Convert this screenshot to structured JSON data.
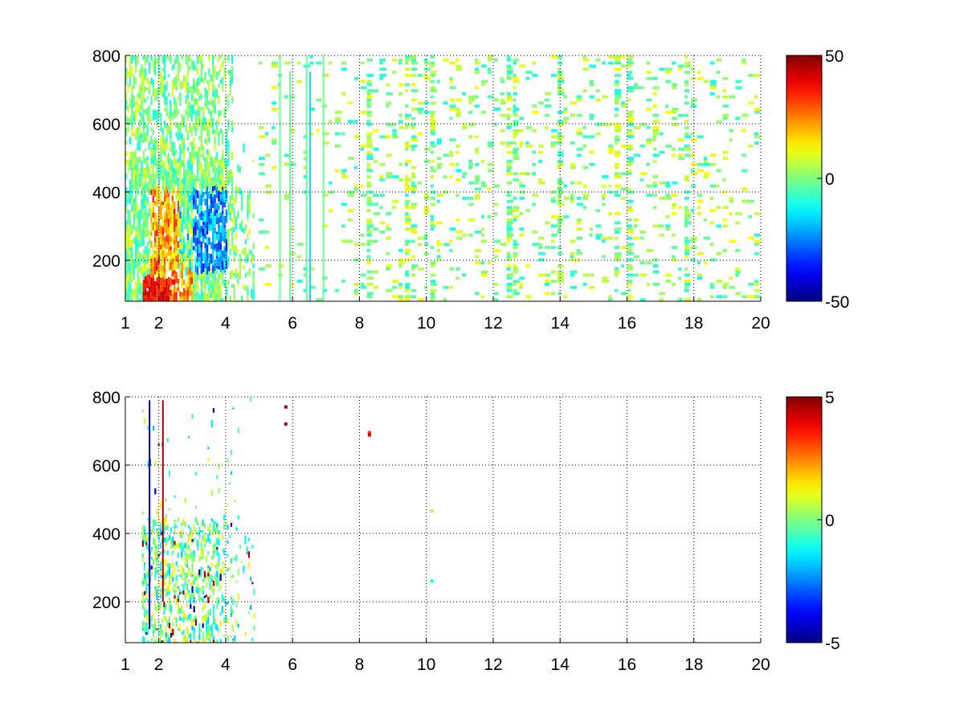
{
  "chart_data": [
    {
      "type": "heatmap",
      "title": "",
      "xlabel": "",
      "ylabel": "",
      "xlim": [
        1,
        20
      ],
      "ylim": [
        80,
        800
      ],
      "x_ticks": [
        1,
        2,
        4,
        6,
        8,
        10,
        12,
        14,
        16,
        18,
        20
      ],
      "y_ticks": [
        200,
        400,
        600,
        800
      ],
      "grid": true,
      "colormap": "jet",
      "colorbar": {
        "min": -50,
        "max": 50,
        "ticks": [
          -50,
          0,
          50
        ]
      },
      "regions": [
        {
          "x": [
            1,
            5
          ],
          "y": [
            80,
            800
          ],
          "value_range": [
            -40,
            45
          ],
          "density": "dense",
          "note": "strongest values near x 2-3.5, y 100-400"
        },
        {
          "x": [
            5,
            20
          ],
          "y": [
            80,
            800
          ],
          "value_range": [
            -20,
            20
          ],
          "density": "sparse",
          "note": "scattered vertical streaks, many missing cells"
        }
      ]
    },
    {
      "type": "heatmap",
      "title": "",
      "xlabel": "",
      "ylabel": "",
      "xlim": [
        1,
        20
      ],
      "ylim": [
        80,
        800
      ],
      "x_ticks": [
        1,
        2,
        4,
        6,
        8,
        10,
        12,
        14,
        16,
        18,
        20
      ],
      "y_ticks": [
        200,
        400,
        600,
        800
      ],
      "grid": true,
      "colormap": "jet",
      "colorbar": {
        "min": -5,
        "max": 5,
        "ticks": [
          -5,
          0,
          5
        ]
      },
      "regions": [
        {
          "x": [
            1.5,
            4.8
          ],
          "y": [
            100,
            800
          ],
          "value_range": [
            -5,
            5
          ],
          "density": "sparse",
          "note": "values concentrated x 1.5-4.8, y 100-450"
        },
        {
          "x": [
            5.7,
            5.8
          ],
          "y": [
            720,
            780
          ],
          "value_range": [
            4,
            5
          ],
          "density": "isolated"
        },
        {
          "x": [
            8.2,
            8.3
          ],
          "y": [
            690,
            705
          ],
          "value_range": [
            3,
            5
          ],
          "density": "isolated"
        },
        {
          "x": [
            10.1,
            10.2
          ],
          "y": [
            260,
            470
          ],
          "value_range": [
            -1,
            1
          ],
          "density": "isolated"
        }
      ]
    }
  ]
}
